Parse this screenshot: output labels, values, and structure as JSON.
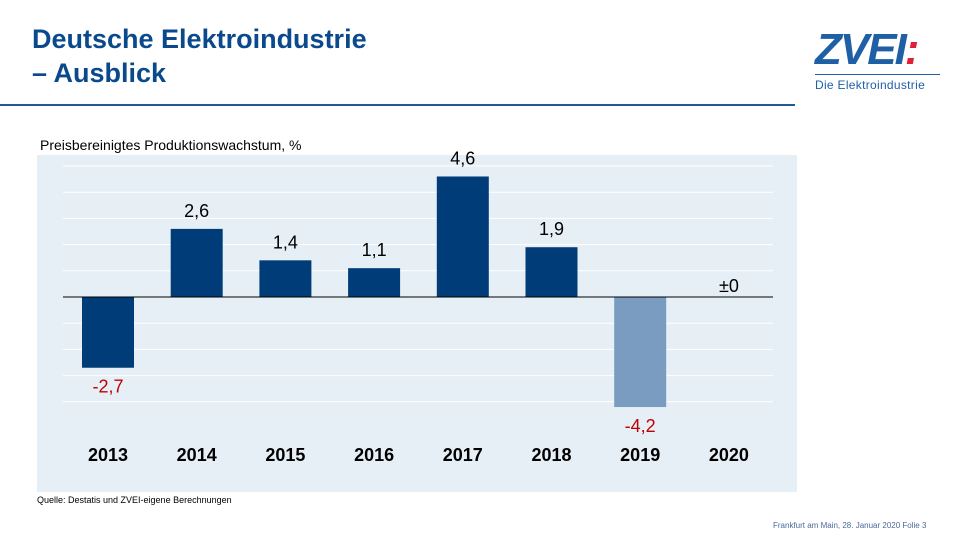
{
  "header": {
    "title_line1": "Deutsche Elektroindustrie",
    "title_line2": "– Ausblick"
  },
  "logo": {
    "text": "ZVEI:",
    "subtitle": "Die Elektroindustrie"
  },
  "chart_data": {
    "type": "bar",
    "ylabel": "Preisbereinigtes Produktionswachstum,  %",
    "categories": [
      "2013",
      "2014",
      "2015",
      "2016",
      "2017",
      "2018",
      "2019",
      "2020"
    ],
    "values": [
      -2.7,
      2.6,
      1.4,
      1.1,
      4.6,
      1.9,
      -4.2,
      0
    ],
    "data_labels": [
      "-2,7",
      "2,6",
      "1,4",
      "1,1",
      "4,6",
      "1,9",
      "-4,2",
      "±0"
    ],
    "ylim": [
      -5,
      5
    ],
    "grid": true,
    "colors": {
      "bar": "#003c78",
      "forecast_bar": "#7a9cc0",
      "negative_label": "#c00000",
      "background": "#e6eff6"
    }
  },
  "source": "Quelle: Destatis und ZVEI-eigene Berechnungen",
  "footer": "Frankfurt am Main, 28. Januar 2020  Folie 3"
}
